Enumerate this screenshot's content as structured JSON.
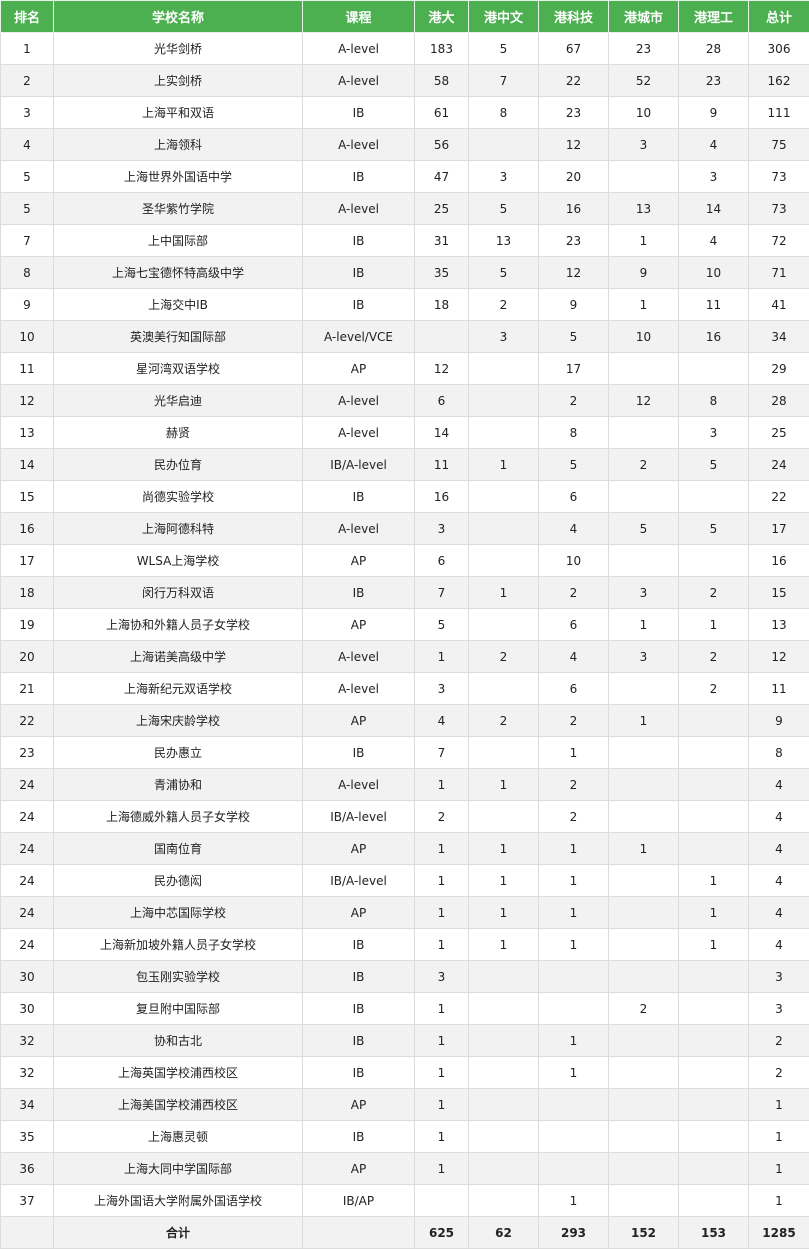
{
  "colors": {
    "header_bg": "#4caf50",
    "header_text": "#ffffff",
    "alt_row_bg": "#f2f2f2",
    "border": "#dcdcdc"
  },
  "table": {
    "headers": [
      "排名",
      "学校名称",
      "课程",
      "港大",
      "港中文",
      "港科技",
      "港城市",
      "港理工",
      "总计"
    ],
    "rows": [
      [
        "1",
        "光华剑桥",
        "A-level",
        "183",
        "5",
        "67",
        "23",
        "28",
        "306"
      ],
      [
        "2",
        "上实剑桥",
        "A-level",
        "58",
        "7",
        "22",
        "52",
        "23",
        "162"
      ],
      [
        "3",
        "上海平和双语",
        "IB",
        "61",
        "8",
        "23",
        "10",
        "9",
        "111"
      ],
      [
        "4",
        "上海领科",
        "A-level",
        "56",
        "",
        "12",
        "3",
        "4",
        "75"
      ],
      [
        "5",
        "上海世界外国语中学",
        "IB",
        "47",
        "3",
        "20",
        "",
        "3",
        "73"
      ],
      [
        "5",
        "圣华紫竹学院",
        "A-level",
        "25",
        "5",
        "16",
        "13",
        "14",
        "73"
      ],
      [
        "7",
        "上中国际部",
        "IB",
        "31",
        "13",
        "23",
        "1",
        "4",
        "72"
      ],
      [
        "8",
        "上海七宝德怀特高级中学",
        "IB",
        "35",
        "5",
        "12",
        "9",
        "10",
        "71"
      ],
      [
        "9",
        "上海交中IB",
        "IB",
        "18",
        "2",
        "9",
        "1",
        "11",
        "41"
      ],
      [
        "10",
        "英澳美行知国际部",
        "A-level/VCE",
        "",
        "3",
        "5",
        "10",
        "16",
        "34"
      ],
      [
        "11",
        "星河湾双语学校",
        "AP",
        "12",
        "",
        "17",
        "",
        "",
        "29"
      ],
      [
        "12",
        "光华启迪",
        "A-level",
        "6",
        "",
        "2",
        "12",
        "8",
        "28"
      ],
      [
        "13",
        "赫贤",
        "A-level",
        "14",
        "",
        "8",
        "",
        "3",
        "25"
      ],
      [
        "14",
        "民办位育",
        "IB/A-level",
        "11",
        "1",
        "5",
        "2",
        "5",
        "24"
      ],
      [
        "15",
        "尚德实验学校",
        "IB",
        "16",
        "",
        "6",
        "",
        "",
        "22"
      ],
      [
        "16",
        "上海阿德科特",
        "A-level",
        "3",
        "",
        "4",
        "5",
        "5",
        "17"
      ],
      [
        "17",
        "WLSA上海学校",
        "AP",
        "6",
        "",
        "10",
        "",
        "",
        "16"
      ],
      [
        "18",
        "闵行万科双语",
        "IB",
        "7",
        "1",
        "2",
        "3",
        "2",
        "15"
      ],
      [
        "19",
        "上海协和外籍人员子女学校",
        "AP",
        "5",
        "",
        "6",
        "1",
        "1",
        "13"
      ],
      [
        "20",
        "上海诺美高级中学",
        "A-level",
        "1",
        "2",
        "4",
        "3",
        "2",
        "12"
      ],
      [
        "21",
        "上海新纪元双语学校",
        "A-level",
        "3",
        "",
        "6",
        "",
        "2",
        "11"
      ],
      [
        "22",
        "上海宋庆龄学校",
        "AP",
        "4",
        "2",
        "2",
        "1",
        "",
        "9"
      ],
      [
        "23",
        "民办惠立",
        "IB",
        "7",
        "",
        "1",
        "",
        "",
        "8"
      ],
      [
        "24",
        "青浦协和",
        "A-level",
        "1",
        "1",
        "2",
        "",
        "",
        "4"
      ],
      [
        "24",
        "上海德威外籍人员子女学校",
        "IB/A-level",
        "2",
        "",
        "2",
        "",
        "",
        "4"
      ],
      [
        "24",
        "国南位育",
        "AP",
        "1",
        "1",
        "1",
        "1",
        "",
        "4"
      ],
      [
        "24",
        "民办德闳",
        "IB/A-level",
        "1",
        "1",
        "1",
        "",
        "1",
        "4"
      ],
      [
        "24",
        "上海中芯国际学校",
        "AP",
        "1",
        "1",
        "1",
        "",
        "1",
        "4"
      ],
      [
        "24",
        "上海新加坡外籍人员子女学校",
        "IB",
        "1",
        "1",
        "1",
        "",
        "1",
        "4"
      ],
      [
        "30",
        "包玉刚实验学校",
        "IB",
        "3",
        "",
        "",
        "",
        "",
        "3"
      ],
      [
        "30",
        "复旦附中国际部",
        "IB",
        "1",
        "",
        "",
        "2",
        "",
        "3"
      ],
      [
        "32",
        "协和古北",
        "IB",
        "1",
        "",
        "1",
        "",
        "",
        "2"
      ],
      [
        "32",
        "上海英国学校浦西校区",
        "IB",
        "1",
        "",
        "1",
        "",
        "",
        "2"
      ],
      [
        "34",
        "上海美国学校浦西校区",
        "AP",
        "1",
        "",
        "",
        "",
        "",
        "1"
      ],
      [
        "35",
        "上海惠灵顿",
        "IB",
        "1",
        "",
        "",
        "",
        "",
        "1"
      ],
      [
        "36",
        "上海大同中学国际部",
        "AP",
        "1",
        "",
        "",
        "",
        "",
        "1"
      ],
      [
        "37",
        "上海外国语大学附属外国语学校",
        "IB/AP",
        "",
        "",
        "1",
        "",
        "",
        "1"
      ]
    ],
    "total": [
      "",
      "合计",
      "",
      "625",
      "62",
      "293",
      "152",
      "153",
      "1285"
    ]
  }
}
